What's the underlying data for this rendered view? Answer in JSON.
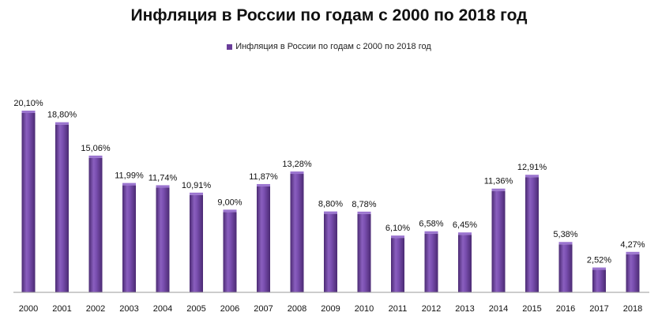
{
  "chart_data": {
    "type": "bar",
    "title": "Инфляция в России по годам с 2000 по 2018 год",
    "legend": {
      "position": "top-center",
      "entries": [
        "Инфляция  в России по годам с 2000 по 2018 год"
      ]
    },
    "xlabel": "",
    "ylabel": "",
    "grid": false,
    "bar_color": "#6a3d9a",
    "categories": [
      "2000",
      "2001",
      "2002",
      "2003",
      "2004",
      "2005",
      "2006",
      "2007",
      "2008",
      "2009",
      "2010",
      "2011",
      "2012",
      "2013",
      "2014",
      "2015",
      "2016",
      "2017",
      "2018"
    ],
    "series": [
      {
        "name": "Инфляция  в России по годам с 2000 по 2018 год",
        "values": [
          20.1,
          18.8,
          15.06,
          11.99,
          11.74,
          10.91,
          9.0,
          11.87,
          13.28,
          8.8,
          8.78,
          6.1,
          6.58,
          6.45,
          11.36,
          12.91,
          5.38,
          2.52,
          4.27
        ],
        "labels": [
          "20,10%",
          "18,80%",
          "15,06%",
          "11,99%",
          "11,74%",
          "10,91%",
          "9,00%",
          "11,87%",
          "13,28%",
          "8,80%",
          "8,78%",
          "6,10%",
          "6,58%",
          "6,45%",
          "11,36%",
          "12,91%",
          "5,38%",
          "2,52%",
          "4,27%"
        ]
      }
    ],
    "ylim": [
      0,
      20.1
    ]
  }
}
